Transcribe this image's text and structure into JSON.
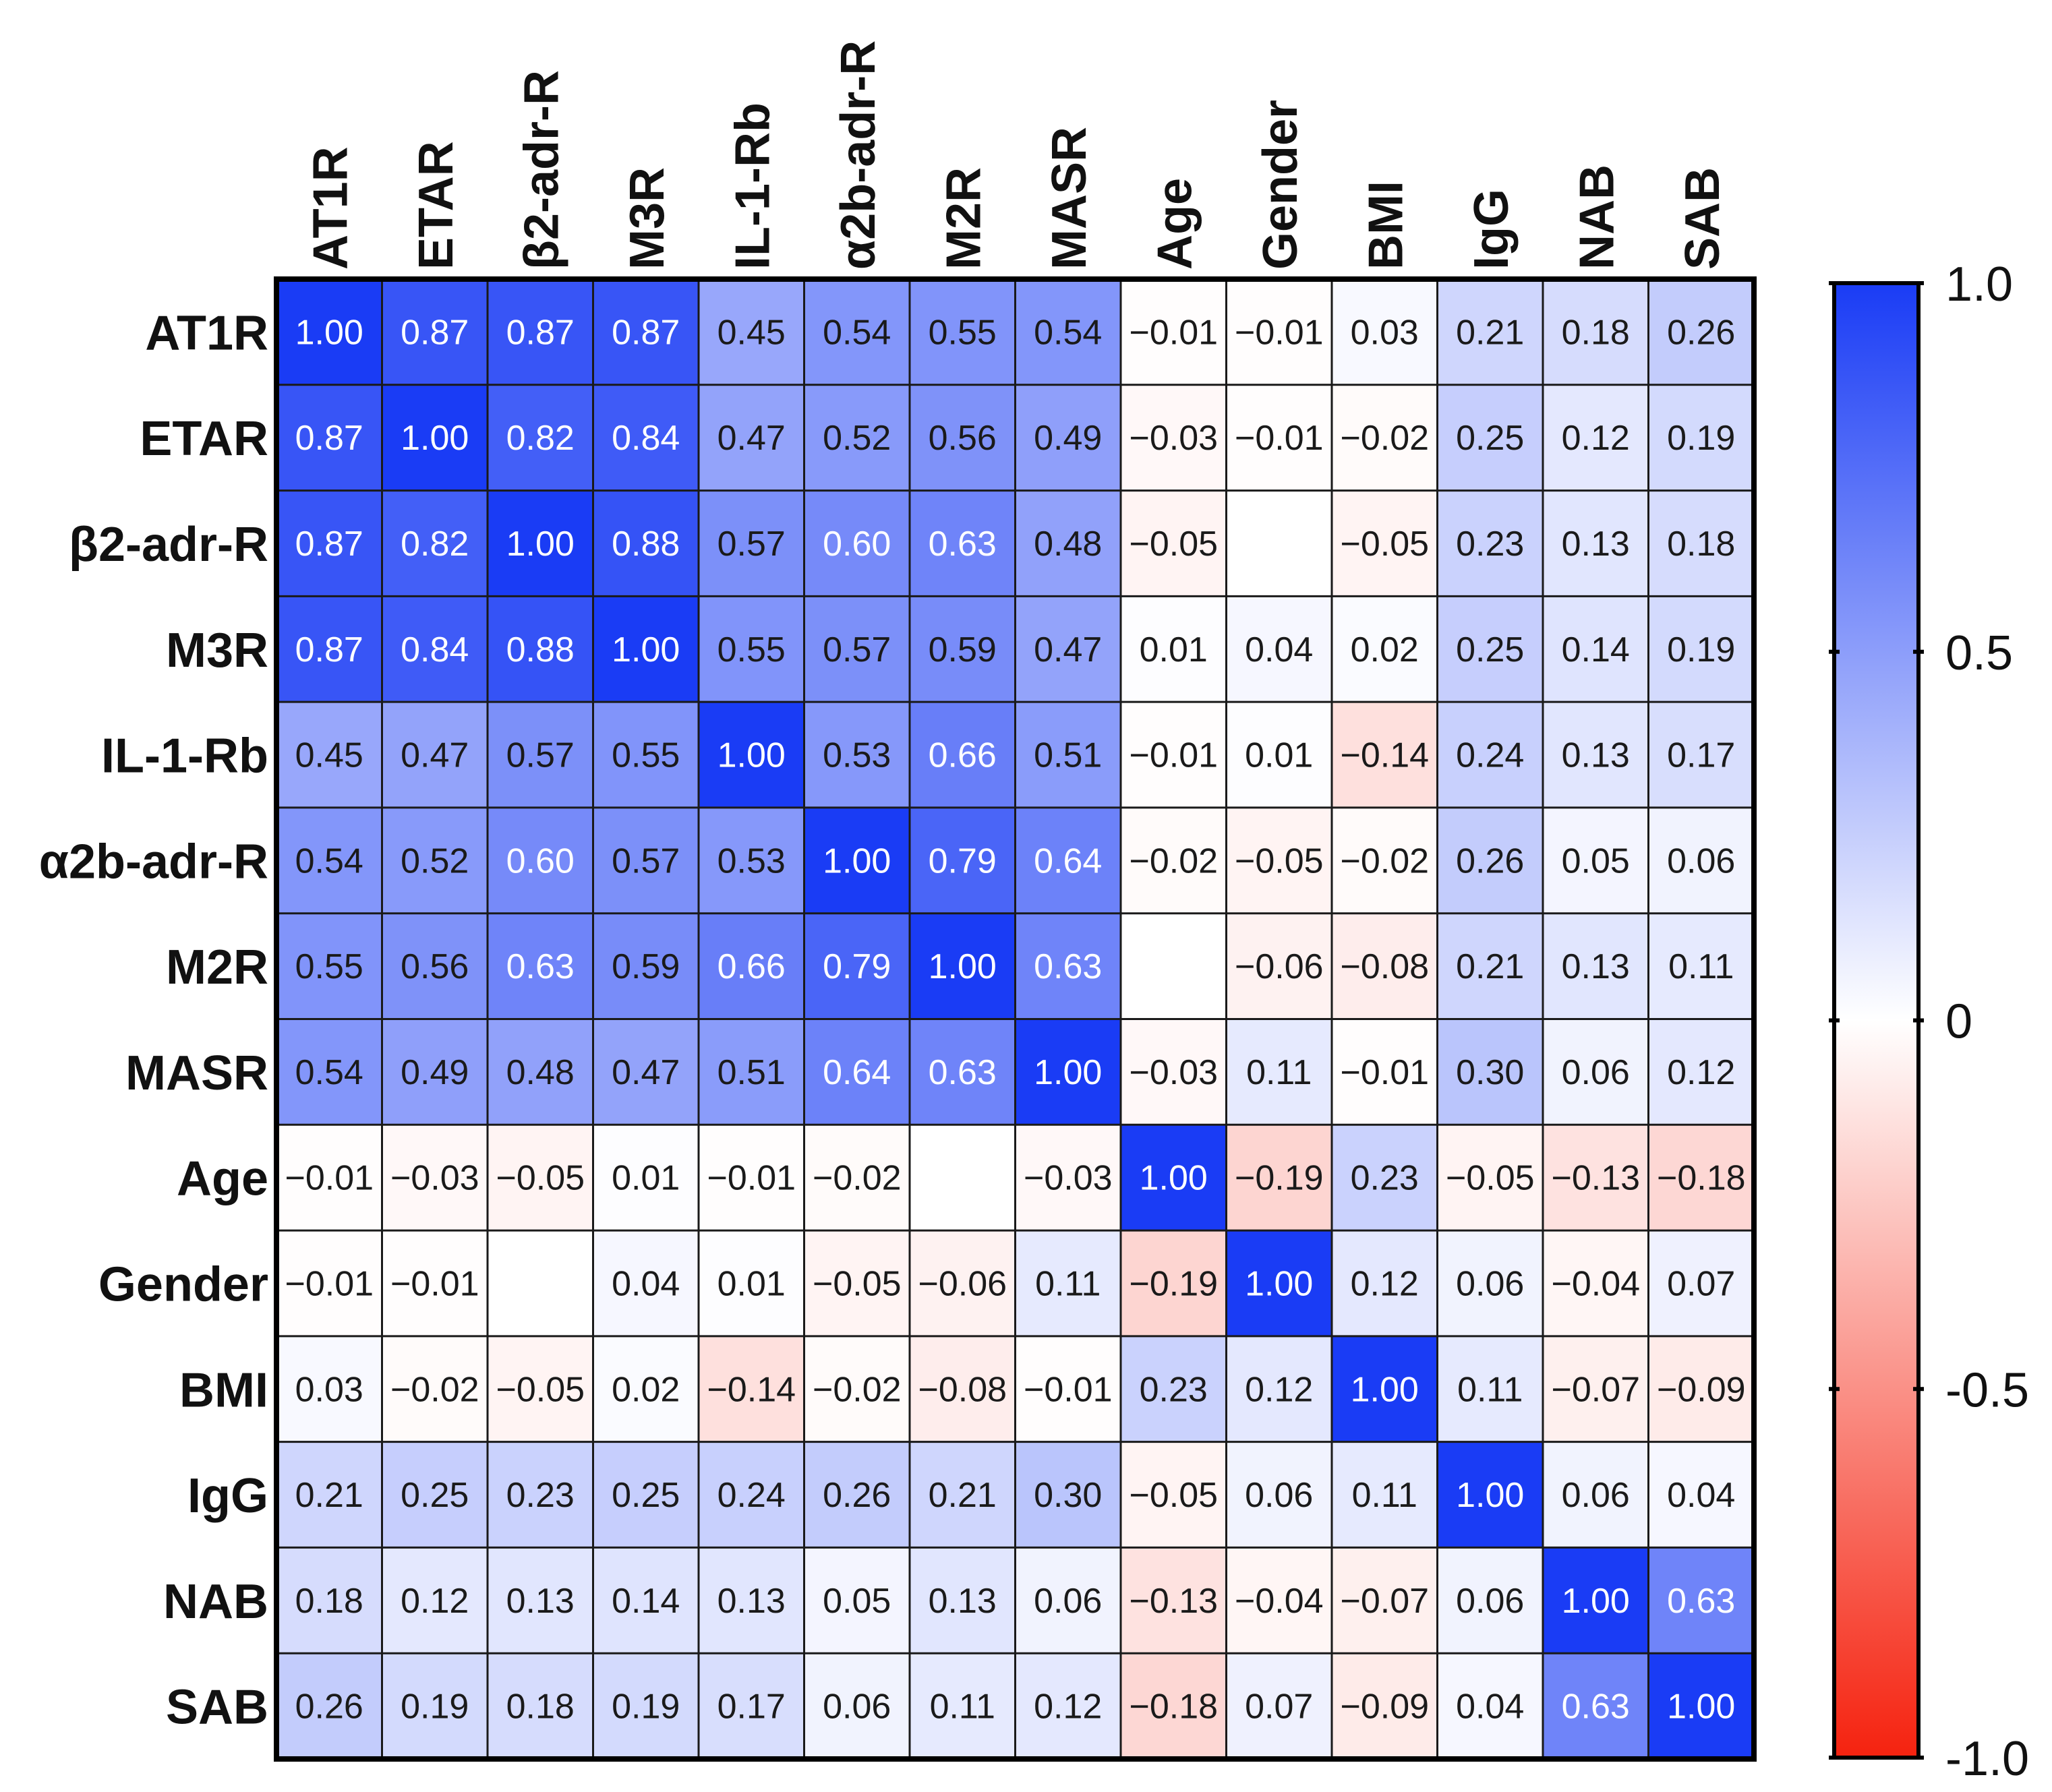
{
  "chart_data": {
    "type": "heatmap",
    "title": "",
    "variables": [
      "AT1R",
      "ETAR",
      "β2-adr-R",
      "M3R",
      "IL-1-Rb",
      "α2b-adr-R",
      "M2R",
      "MASR",
      "Age",
      "Gender",
      "BMI",
      "IgG",
      "NAB",
      "SAB"
    ],
    "matrix": [
      [
        1.0,
        0.87,
        0.87,
        0.87,
        0.45,
        0.54,
        0.55,
        0.54,
        -0.01,
        -0.01,
        0.03,
        0.21,
        0.18,
        0.26
      ],
      [
        0.87,
        1.0,
        0.82,
        0.84,
        0.47,
        0.52,
        0.56,
        0.49,
        -0.03,
        -0.01,
        -0.02,
        0.25,
        0.12,
        0.19
      ],
      [
        0.87,
        0.82,
        1.0,
        0.88,
        0.57,
        0.6,
        0.63,
        0.48,
        -0.05,
        null,
        -0.05,
        0.23,
        0.13,
        0.18
      ],
      [
        0.87,
        0.84,
        0.88,
        1.0,
        0.55,
        0.57,
        0.59,
        0.47,
        0.01,
        0.04,
        0.02,
        0.25,
        0.14,
        0.19
      ],
      [
        0.45,
        0.47,
        0.57,
        0.55,
        1.0,
        0.53,
        0.66,
        0.51,
        -0.01,
        0.01,
        -0.14,
        0.24,
        0.13,
        0.17
      ],
      [
        0.54,
        0.52,
        0.6,
        0.57,
        0.53,
        1.0,
        0.79,
        0.64,
        -0.02,
        -0.05,
        -0.02,
        0.26,
        0.05,
        0.06
      ],
      [
        0.55,
        0.56,
        0.63,
        0.59,
        0.66,
        0.79,
        1.0,
        0.63,
        null,
        -0.06,
        -0.08,
        0.21,
        0.13,
        0.11
      ],
      [
        0.54,
        0.49,
        0.48,
        0.47,
        0.51,
        0.64,
        0.63,
        1.0,
        -0.03,
        0.11,
        -0.01,
        0.3,
        0.06,
        0.12
      ],
      [
        -0.01,
        -0.03,
        -0.05,
        0.01,
        -0.01,
        -0.02,
        null,
        -0.03,
        1.0,
        -0.19,
        0.23,
        -0.05,
        -0.13,
        -0.18
      ],
      [
        -0.01,
        -0.01,
        null,
        0.04,
        0.01,
        -0.05,
        -0.06,
        0.11,
        -0.19,
        1.0,
        0.12,
        0.06,
        -0.04,
        0.07
      ],
      [
        0.03,
        -0.02,
        -0.05,
        0.02,
        -0.14,
        -0.02,
        -0.08,
        -0.01,
        0.23,
        0.12,
        1.0,
        0.11,
        -0.07,
        -0.09
      ],
      [
        0.21,
        0.25,
        0.23,
        0.25,
        0.24,
        0.26,
        0.21,
        0.3,
        -0.05,
        0.06,
        0.11,
        1.0,
        0.06,
        0.04
      ],
      [
        0.18,
        0.12,
        0.13,
        0.14,
        0.13,
        0.05,
        0.13,
        0.06,
        -0.13,
        -0.04,
        -0.07,
        0.06,
        1.0,
        0.63
      ],
      [
        0.26,
        0.19,
        0.18,
        0.19,
        0.17,
        0.06,
        0.11,
        0.12,
        -0.18,
        0.07,
        -0.09,
        0.04,
        0.63,
        1.0
      ]
    ],
    "colorbar": {
      "range": [
        -1.0,
        1.0
      ],
      "tick_labels": [
        "1.0",
        "0.5",
        "0",
        "-0.5",
        "-1.0"
      ],
      "tick_values": [
        1.0,
        0.5,
        0,
        -0.5,
        -1.0
      ],
      "colors": {
        "positive": "#1a3cf5",
        "zero": "#ffffff",
        "negative": "#f5220f"
      }
    }
  }
}
